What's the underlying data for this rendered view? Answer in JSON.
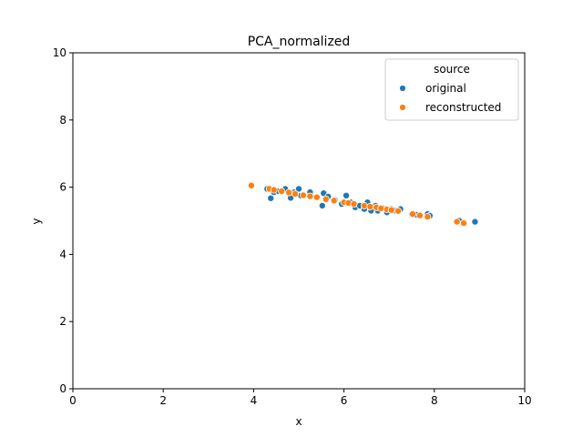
{
  "chart_data": {
    "type": "scatter",
    "title": "PCA_normalized",
    "xlabel": "x",
    "ylabel": "y",
    "xlim": [
      0,
      10
    ],
    "ylim": [
      0,
      10
    ],
    "xticks": [
      0,
      2,
      4,
      6,
      8,
      10
    ],
    "yticks": [
      0,
      2,
      4,
      6,
      8,
      10
    ],
    "xtick_labels": [
      "0",
      "2",
      "4",
      "6",
      "8",
      "10"
    ],
    "ytick_labels": [
      "0",
      "2",
      "4",
      "6",
      "8",
      "10"
    ],
    "grid": false,
    "legend": {
      "title": "source",
      "position": "top-right",
      "entries": [
        "original",
        "reconstructed"
      ]
    },
    "series": [
      {
        "name": "original",
        "color": "#1f77b4",
        "points": [
          [
            4.3,
            5.95
          ],
          [
            4.38,
            5.67
          ],
          [
            4.45,
            5.85
          ],
          [
            4.55,
            5.88
          ],
          [
            4.7,
            5.95
          ],
          [
            4.82,
            5.68
          ],
          [
            4.9,
            5.85
          ],
          [
            5.0,
            5.95
          ],
          [
            5.05,
            5.75
          ],
          [
            5.25,
            5.85
          ],
          [
            5.38,
            5.7
          ],
          [
            5.52,
            5.45
          ],
          [
            5.55,
            5.82
          ],
          [
            5.65,
            5.72
          ],
          [
            5.8,
            5.62
          ],
          [
            5.95,
            5.5
          ],
          [
            6.05,
            5.75
          ],
          [
            6.15,
            5.55
          ],
          [
            6.25,
            5.4
          ],
          [
            6.35,
            5.45
          ],
          [
            6.45,
            5.35
          ],
          [
            6.52,
            5.55
          ],
          [
            6.6,
            5.3
          ],
          [
            6.7,
            5.45
          ],
          [
            6.75,
            5.3
          ],
          [
            6.85,
            5.38
          ],
          [
            6.95,
            5.25
          ],
          [
            7.05,
            5.35
          ],
          [
            7.15,
            5.3
          ],
          [
            7.25,
            5.35
          ],
          [
            7.5,
            5.2
          ],
          [
            7.6,
            5.18
          ],
          [
            7.85,
            5.2
          ],
          [
            7.9,
            5.15
          ],
          [
            8.55,
            5.0
          ],
          [
            8.9,
            4.97
          ]
        ]
      },
      {
        "name": "reconstructed",
        "color": "#ff7f0e",
        "points": [
          [
            3.95,
            6.05
          ],
          [
            4.35,
            5.95
          ],
          [
            4.45,
            5.92
          ],
          [
            4.62,
            5.88
          ],
          [
            4.78,
            5.84
          ],
          [
            4.92,
            5.8
          ],
          [
            5.1,
            5.76
          ],
          [
            5.25,
            5.73
          ],
          [
            5.4,
            5.7
          ],
          [
            5.6,
            5.64
          ],
          [
            5.78,
            5.6
          ],
          [
            6.0,
            5.55
          ],
          [
            6.1,
            5.53
          ],
          [
            6.22,
            5.5
          ],
          [
            6.45,
            5.45
          ],
          [
            6.58,
            5.42
          ],
          [
            6.72,
            5.4
          ],
          [
            6.82,
            5.37
          ],
          [
            6.95,
            5.34
          ],
          [
            7.05,
            5.32
          ],
          [
            7.2,
            5.29
          ],
          [
            7.52,
            5.2
          ],
          [
            7.68,
            5.16
          ],
          [
            7.85,
            5.12
          ],
          [
            8.5,
            4.97
          ],
          [
            8.65,
            4.93
          ]
        ]
      }
    ]
  }
}
